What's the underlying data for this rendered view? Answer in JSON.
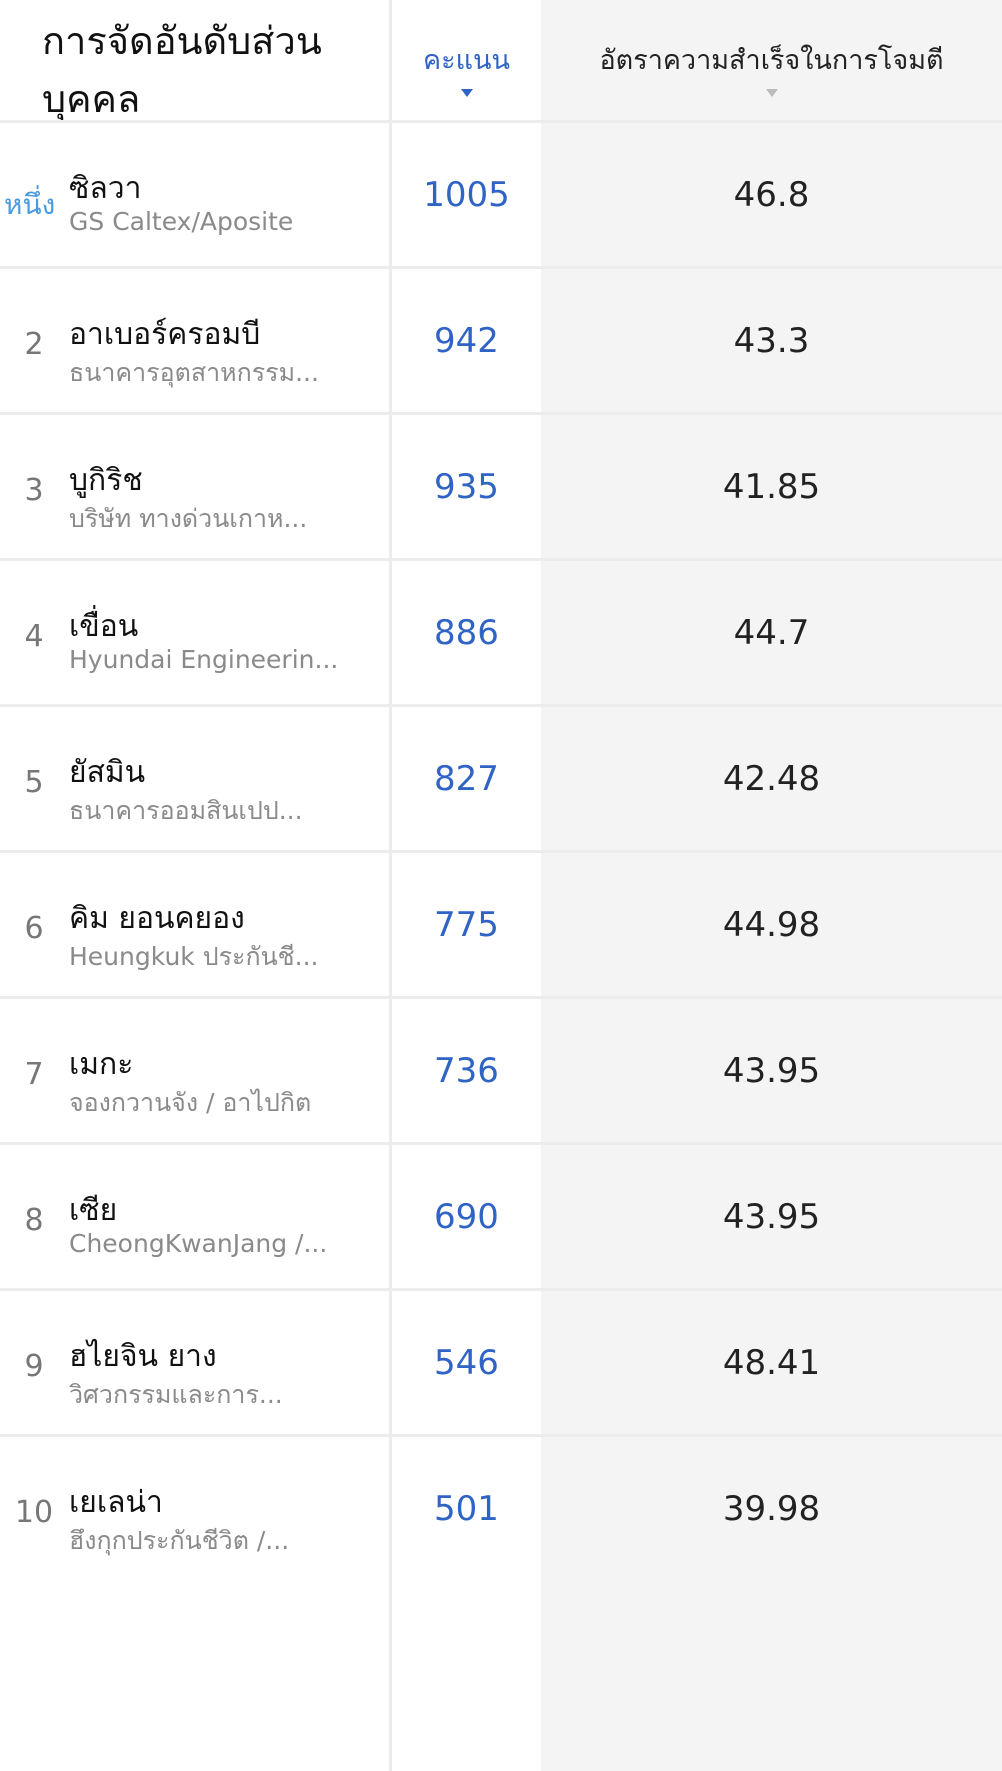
{
  "header": {
    "title": "การจัดอันดับส่วนบุคคล",
    "score_label": "คะแนน",
    "rate_label": "อัตราความสำเร็จในการโจมตี",
    "sorted_by": "score"
  },
  "colors": {
    "accent": "#2f63c4",
    "rank_first": "#4a9ae0"
  },
  "rows": [
    {
      "rank": "หนึ่ง",
      "name": "ซิลวา",
      "team": "GS Caltex/Aposite",
      "score": "1005",
      "rate": "46.8"
    },
    {
      "rank": "2",
      "name": "อาเบอร์ครอมบี",
      "team": "ธนาคารอุตสาหกรรม...",
      "score": "942",
      "rate": "43.3"
    },
    {
      "rank": "3",
      "name": "บูกิริช",
      "team": "บริษัท ทางด่วนเกาห...",
      "score": "935",
      "rate": "41.85"
    },
    {
      "rank": "4",
      "name": "เขื่อน",
      "team": "Hyundai Engineerin...",
      "score": "886",
      "rate": "44.7"
    },
    {
      "rank": "5",
      "name": "ยัสมิน",
      "team": "ธนาคารออมสินเปป...",
      "score": "827",
      "rate": "42.48"
    },
    {
      "rank": "6",
      "name": "คิม ยอนคยอง",
      "team": "Heungkuk ประกันชี...",
      "score": "775",
      "rate": "44.98"
    },
    {
      "rank": "7",
      "name": "เมกะ",
      "team": "จองกวานจัง / อาไปกิต",
      "score": "736",
      "rate": "43.95"
    },
    {
      "rank": "8",
      "name": "เซีย",
      "team": "CheongKwanJang /...",
      "score": "690",
      "rate": "43.95"
    },
    {
      "rank": "9",
      "name": "ฮไยจิน ยาง",
      "team": "วิศวกรรมและการ...",
      "score": "546",
      "rate": "48.41"
    },
    {
      "rank": "10",
      "name": "เยเลน่า",
      "team": "ฮึงกุกประกันชีวิต /...",
      "score": "501",
      "rate": "39.98"
    }
  ]
}
